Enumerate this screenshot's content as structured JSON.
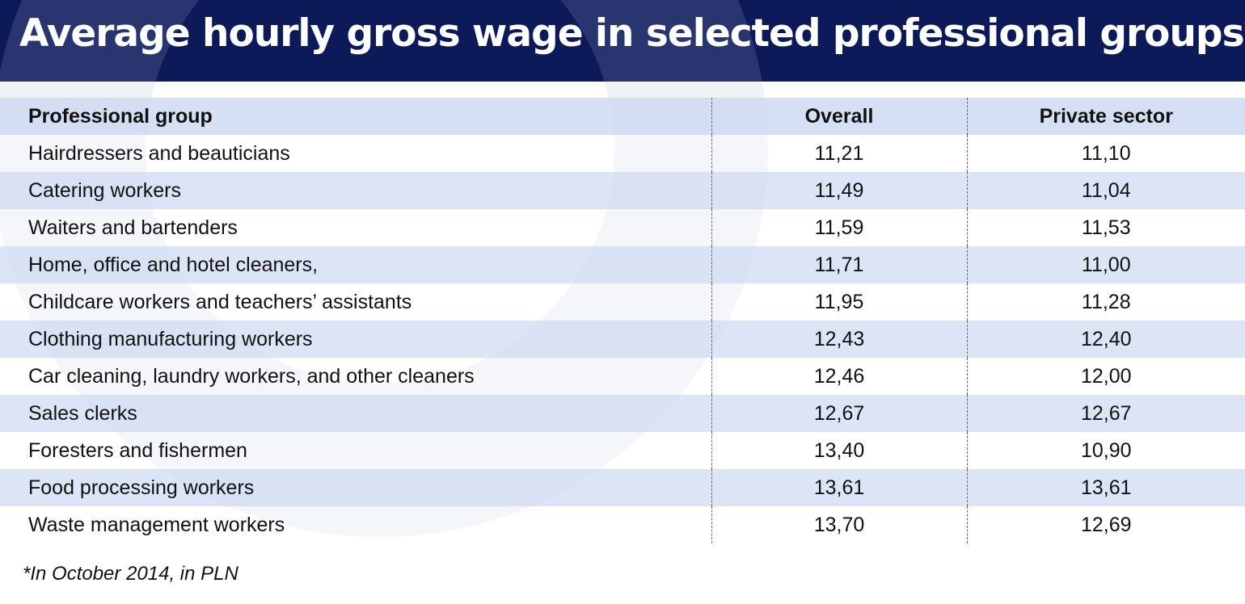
{
  "title": "Average hourly gross wage in selected professional groups*",
  "colors": {
    "title_background": "#0c1a5a",
    "title_text": "#ffffff",
    "row_shaded": "#cfdbf2",
    "row_plain": "#ffffff"
  },
  "chart_data": {
    "type": "table",
    "columns": [
      "Professional group",
      "Overall",
      "Private sector"
    ],
    "rows": [
      [
        "Hairdressers and beauticians",
        "11,21",
        "11,10"
      ],
      [
        "Catering workers",
        "11,49",
        "11,04"
      ],
      [
        "Waiters and bartenders",
        "11,59",
        "11,53"
      ],
      [
        "Home, office and hotel cleaners,",
        "11,71",
        "11,00"
      ],
      [
        "Childcare workers and teachers’ assistants",
        "11,95",
        "11,28"
      ],
      [
        "Clothing manufacturing workers",
        "12,43",
        "12,40"
      ],
      [
        "Car cleaning, laundry workers, and other cleaners",
        "12,46",
        "12,00"
      ],
      [
        "Sales clerks",
        "12,67",
        "12,67"
      ],
      [
        "Foresters and fishermen",
        "13,40",
        "10,90"
      ],
      [
        "Food processing workers",
        "13,61",
        "13,61"
      ],
      [
        "Waste management workers",
        "13,70",
        "12,69"
      ]
    ]
  },
  "footnote": "*In October 2014, in PLN"
}
